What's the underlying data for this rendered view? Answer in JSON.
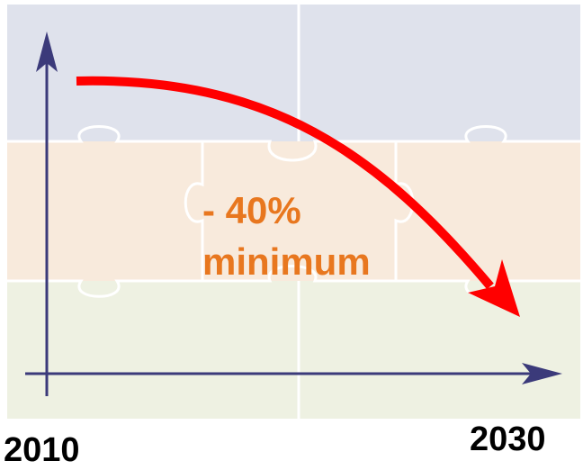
{
  "labels": {
    "reduction": "- 40%",
    "qualifier": "minimum"
  },
  "timeline": {
    "start": "2010",
    "end": "2030"
  }
}
